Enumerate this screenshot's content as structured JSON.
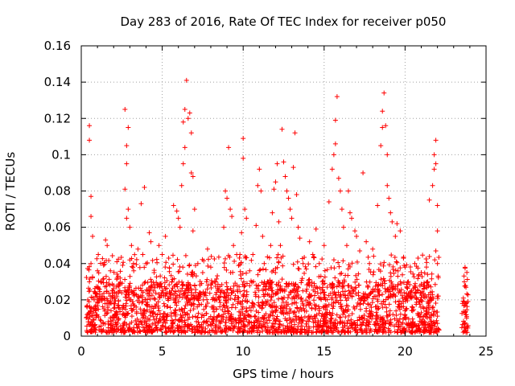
{
  "chart_data": {
    "type": "scatter",
    "title": "Day 283 of 2016, Rate Of TEC Index for receiver p050",
    "xlabel": "GPS time / hours",
    "ylabel": "ROTI / TECUs",
    "xlim": [
      0,
      25
    ],
    "ylim": [
      0,
      0.16
    ],
    "xticks": [
      0,
      5,
      10,
      15,
      20,
      25
    ],
    "xtick_labels": [
      "0",
      "5",
      "10",
      "15",
      "20",
      "25"
    ],
    "yticks": [
      0,
      0.02,
      0.04,
      0.06,
      0.08,
      0.1,
      0.12,
      0.14,
      0.16
    ],
    "ytick_labels": [
      "0",
      "0.02",
      "0.04",
      "0.06",
      "0.08",
      "0.1",
      "0.12",
      "0.14",
      "0.16"
    ],
    "grid": true,
    "marker": "plus",
    "color": "#ff0000",
    "series": [
      {
        "name": "ROTI",
        "points": [
          [
            0.5,
            0.116
          ],
          [
            0.5,
            0.108
          ],
          [
            0.6,
            0.077
          ],
          [
            0.6,
            0.066
          ],
          [
            0.7,
            0.055
          ],
          [
            0.6,
            0.04
          ],
          [
            0.5,
            0.03
          ],
          [
            0.4,
            0.02
          ],
          [
            0.5,
            0.012
          ],
          [
            0.6,
            0.008
          ],
          [
            1.0,
            0.036
          ],
          [
            1.2,
            0.03
          ],
          [
            1.3,
            0.022
          ],
          [
            1.4,
            0.015
          ],
          [
            1.5,
            0.053
          ],
          [
            1.6,
            0.05
          ],
          [
            1.8,
            0.036
          ],
          [
            2.0,
            0.028
          ],
          [
            2.2,
            0.041
          ],
          [
            2.4,
            0.032
          ],
          [
            2.7,
            0.125
          ],
          [
            2.8,
            0.105
          ],
          [
            2.9,
            0.115
          ],
          [
            2.8,
            0.095
          ],
          [
            2.7,
            0.081
          ],
          [
            2.9,
            0.07
          ],
          [
            2.8,
            0.065
          ],
          [
            3.0,
            0.06
          ],
          [
            3.1,
            0.05
          ],
          [
            3.0,
            0.042
          ],
          [
            3.5,
            0.048
          ],
          [
            3.7,
            0.073
          ],
          [
            3.9,
            0.082
          ],
          [
            3.8,
            0.045
          ],
          [
            4.0,
            0.04
          ],
          [
            4.2,
            0.057
          ],
          [
            4.3,
            0.052
          ],
          [
            4.5,
            0.035
          ],
          [
            4.8,
            0.05
          ],
          [
            5.0,
            0.045
          ],
          [
            5.2,
            0.055
          ],
          [
            5.4,
            0.043
          ],
          [
            5.6,
            0.03
          ],
          [
            5.7,
            0.072
          ],
          [
            5.9,
            0.069
          ],
          [
            6.0,
            0.065
          ],
          [
            6.1,
            0.06
          ],
          [
            6.2,
            0.083
          ],
          [
            6.3,
            0.095
          ],
          [
            6.4,
            0.104
          ],
          [
            6.3,
            0.118
          ],
          [
            6.4,
            0.125
          ],
          [
            6.5,
            0.141
          ],
          [
            6.6,
            0.12
          ],
          [
            6.7,
            0.123
          ],
          [
            6.8,
            0.112
          ],
          [
            6.8,
            0.09
          ],
          [
            6.9,
            0.088
          ],
          [
            7.0,
            0.07
          ],
          [
            6.9,
            0.058
          ],
          [
            7.2,
            0.04
          ],
          [
            7.5,
            0.035
          ],
          [
            7.8,
            0.048
          ],
          [
            8.0,
            0.038
          ],
          [
            8.3,
            0.03
          ],
          [
            8.6,
            0.022
          ],
          [
            8.8,
            0.06
          ],
          [
            8.9,
            0.08
          ],
          [
            9.0,
            0.076
          ],
          [
            9.1,
            0.104
          ],
          [
            9.2,
            0.07
          ],
          [
            9.3,
            0.066
          ],
          [
            9.4,
            0.05
          ],
          [
            9.6,
            0.045
          ],
          [
            9.8,
            0.045
          ],
          [
            9.9,
            0.057
          ],
          [
            10.0,
            0.109
          ],
          [
            10.0,
            0.098
          ],
          [
            10.1,
            0.07
          ],
          [
            10.2,
            0.065
          ],
          [
            10.4,
            0.036
          ],
          [
            10.6,
            0.045
          ],
          [
            10.8,
            0.061
          ],
          [
            10.9,
            0.083
          ],
          [
            11.0,
            0.092
          ],
          [
            11.1,
            0.08
          ],
          [
            11.2,
            0.055
          ],
          [
            11.3,
            0.04
          ],
          [
            11.5,
            0.03
          ],
          [
            11.7,
            0.05
          ],
          [
            11.8,
            0.068
          ],
          [
            11.9,
            0.081
          ],
          [
            12.0,
            0.085
          ],
          [
            12.1,
            0.095
          ],
          [
            12.2,
            0.063
          ],
          [
            12.3,
            0.05
          ],
          [
            12.4,
            0.114
          ],
          [
            12.5,
            0.096
          ],
          [
            12.6,
            0.088
          ],
          [
            12.7,
            0.08
          ],
          [
            12.8,
            0.076
          ],
          [
            12.9,
            0.07
          ],
          [
            13.0,
            0.065
          ],
          [
            13.1,
            0.093
          ],
          [
            13.2,
            0.112
          ],
          [
            13.3,
            0.078
          ],
          [
            13.4,
            0.06
          ],
          [
            13.5,
            0.054
          ],
          [
            13.7,
            0.04
          ],
          [
            13.9,
            0.037
          ],
          [
            14.1,
            0.052
          ],
          [
            14.3,
            0.045
          ],
          [
            14.5,
            0.059
          ],
          [
            14.7,
            0.04
          ],
          [
            14.8,
            0.033
          ],
          [
            15.0,
            0.05
          ],
          [
            15.3,
            0.074
          ],
          [
            15.5,
            0.092
          ],
          [
            15.6,
            0.1
          ],
          [
            15.7,
            0.106
          ],
          [
            15.7,
            0.119
          ],
          [
            15.8,
            0.132
          ],
          [
            15.9,
            0.087
          ],
          [
            16.0,
            0.08
          ],
          [
            16.1,
            0.07
          ],
          [
            16.2,
            0.06
          ],
          [
            16.4,
            0.05
          ],
          [
            16.5,
            0.08
          ],
          [
            16.6,
            0.068
          ],
          [
            16.7,
            0.065
          ],
          [
            16.9,
            0.058
          ],
          [
            17.0,
            0.055
          ],
          [
            17.2,
            0.047
          ],
          [
            17.4,
            0.09
          ],
          [
            17.6,
            0.052
          ],
          [
            17.8,
            0.04
          ],
          [
            18.0,
            0.048
          ],
          [
            18.3,
            0.072
          ],
          [
            18.5,
            0.105
          ],
          [
            18.6,
            0.115
          ],
          [
            18.6,
            0.124
          ],
          [
            18.7,
            0.134
          ],
          [
            18.8,
            0.116
          ],
          [
            18.9,
            0.1
          ],
          [
            18.9,
            0.083
          ],
          [
            19.0,
            0.076
          ],
          [
            19.1,
            0.068
          ],
          [
            19.2,
            0.063
          ],
          [
            19.4,
            0.055
          ],
          [
            19.5,
            0.062
          ],
          [
            19.7,
            0.058
          ],
          [
            19.9,
            0.043
          ],
          [
            20.0,
            0.038
          ],
          [
            20.2,
            0.03
          ],
          [
            20.4,
            0.025
          ],
          [
            20.6,
            0.04
          ],
          [
            20.8,
            0.043
          ],
          [
            21.0,
            0.035
          ],
          [
            21.2,
            0.028
          ],
          [
            21.4,
            0.03
          ],
          [
            21.5,
            0.075
          ],
          [
            21.7,
            0.083
          ],
          [
            21.8,
            0.092
          ],
          [
            21.8,
            0.1
          ],
          [
            21.9,
            0.108
          ],
          [
            21.9,
            0.095
          ],
          [
            22.0,
            0.072
          ],
          [
            22.0,
            0.058
          ],
          [
            21.9,
            0.047
          ],
          [
            22.0,
            0.04
          ],
          [
            23.6,
            0.021
          ],
          [
            23.7,
            0.017
          ],
          [
            23.7,
            0.013
          ],
          [
            23.8,
            0.01
          ],
          [
            23.7,
            0.007
          ]
        ]
      }
    ],
    "baseline_band": {
      "x_ranges": [
        [
          0.3,
          22.1
        ],
        [
          23.5,
          23.9
        ]
      ],
      "y_min": 0.002,
      "y_max": 0.03
    }
  }
}
